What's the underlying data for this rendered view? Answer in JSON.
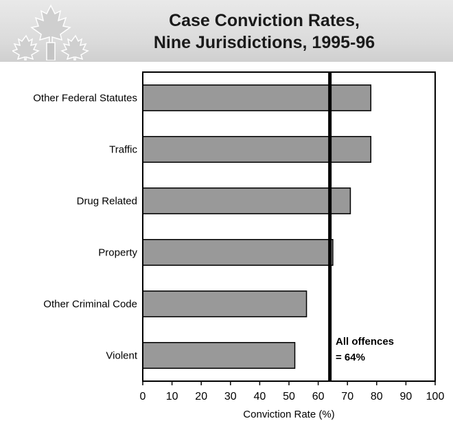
{
  "header": {
    "title_line1": "Case Conviction Rates,",
    "title_line2": "Nine Jurisdictions, 1995-96"
  },
  "chart_data": {
    "type": "bar",
    "orientation": "horizontal",
    "title": "Case Conviction Rates, Nine Jurisdictions, 1995-96",
    "categories": [
      "Other Federal Statutes",
      "Traffic",
      "Drug Related",
      "Property",
      "Other Criminal Code",
      "Violent"
    ],
    "values": [
      78,
      78,
      71,
      65,
      56,
      52
    ],
    "xlabel": "Conviction Rate (%)",
    "ylabel": "",
    "xlim": [
      0,
      100
    ],
    "xticks": [
      "0",
      "10",
      "20",
      "30",
      "40",
      "50",
      "60",
      "70",
      "80",
      "90",
      "100"
    ],
    "grid": false,
    "bar_color": "#999999",
    "reference_line": {
      "value": 64,
      "label_line1": "All offences",
      "label_line2": "= 64%"
    }
  }
}
